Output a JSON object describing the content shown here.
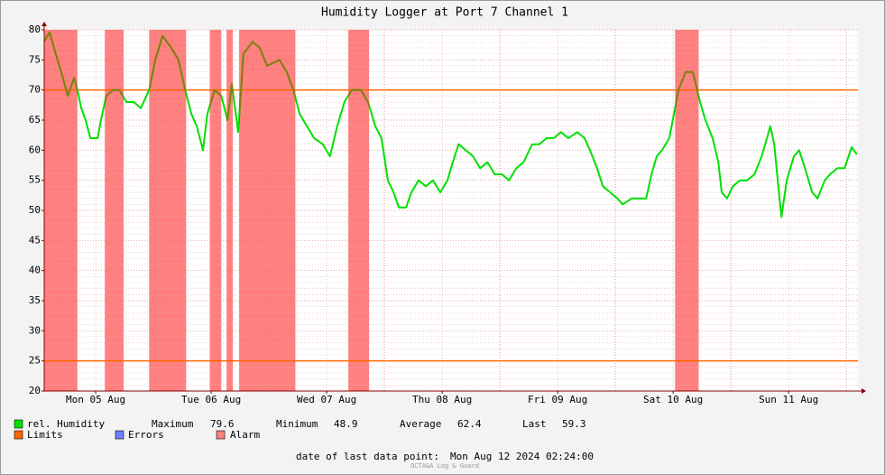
{
  "chart_data": {
    "type": "line",
    "title": "Humidity Logger at Port 7 Channel 1",
    "x": [
      1.3,
      2.4,
      3.7,
      5.2,
      6.2,
      7.5,
      8.2,
      9.0,
      9.9,
      10.9,
      12.4,
      13.1,
      14.2,
      15.6,
      16.9,
      18.4,
      19.9,
      21.4,
      23.1,
      24.4,
      25.9,
      27.7,
      29.2,
      30.6,
      31.9,
      33.0,
      34.3,
      35.2,
      36.7,
      38.1,
      39.4,
      40.3,
      41.6,
      42.7,
      44.6,
      46.1,
      47.6,
      50.2,
      51.7,
      53.1,
      54.4,
      55.9,
      57.4,
      59.2,
      60.7,
      62.2,
      63.7,
      65.2,
      67.1,
      68.6,
      70.1,
      71.4,
      72.7,
      73.9,
      75.0,
      76.5,
      77.6,
      79.1,
      80.6,
      82.1,
      83.6,
      85.1,
      86.2,
      87.4,
      88.9,
      90.4,
      91.9,
      93.4,
      94.9,
      96.4,
      97.9,
      99.4,
      100.9,
      102.7,
      104.2,
      105.7,
      107.2,
      108.7,
      110.2,
      112.1,
      113.6,
      114.7,
      116.2,
      117.4,
      118.9,
      120.4,
      121.5,
      123.4,
      124.9,
      126.4,
      127.5,
      128.6,
      129.7,
      131.2,
      132.4,
      133.1,
      134.6,
      136.1,
      137.6,
      138.7,
      140.2,
      141.4,
      142.1,
      143.2,
      144.4,
      145.9,
      147.4,
      148.9,
      150.4,
      151.5,
      152.2,
      153.0,
      154.1,
      154.5,
      155.6,
      157.1,
      158.2,
      159.4,
      160.9,
      162.0,
      163.5,
      164.6,
      166.1,
      167.6,
      169.1,
      170.2
    ],
    "series": [
      {
        "name": "rel. Humidity",
        "color": "#00e000",
        "alarm_color": "#8a7a10",
        "values": [
          78,
          79.6,
          76,
          72,
          69,
          72,
          70,
          67,
          65,
          62,
          62,
          65,
          69,
          70,
          70,
          68,
          68,
          67,
          70,
          75,
          79,
          77,
          75,
          70,
          66,
          64,
          60,
          66,
          70,
          69,
          65,
          71,
          63,
          76,
          78,
          77,
          74,
          75,
          73,
          70,
          66,
          64,
          62,
          61,
          59,
          64,
          68,
          70,
          70,
          68,
          64,
          62,
          55,
          53,
          50.5,
          50.5,
          53,
          55,
          54,
          55,
          53,
          55,
          58,
          61,
          60,
          59,
          57,
          58,
          56,
          56,
          55,
          57,
          58,
          61,
          61,
          62,
          62,
          63,
          62,
          63,
          62,
          60,
          57,
          54,
          53,
          52,
          51,
          52,
          52,
          52,
          56,
          59,
          60,
          62,
          67,
          70,
          73,
          73,
          68,
          65,
          62,
          58,
          53,
          52,
          54,
          55,
          55,
          56,
          59,
          62,
          64,
          61,
          52,
          48.9,
          55,
          59,
          60,
          57,
          53,
          52,
          55,
          56,
          57,
          57,
          60.5,
          59.3
        ]
      }
    ],
    "xlim": [
      1.3,
      170.4
    ],
    "ylim": [
      20,
      80
    ],
    "yticks": [
      20,
      25,
      30,
      35,
      40,
      45,
      50,
      55,
      60,
      65,
      70,
      75,
      80
    ],
    "xticks": [
      {
        "value": 12,
        "label": "Mon 05 Aug"
      },
      {
        "value": 36,
        "label": "Tue 06 Aug"
      },
      {
        "value": 60,
        "label": "Wed 07 Aug"
      },
      {
        "value": 84,
        "label": "Thu 08 Aug"
      },
      {
        "value": 108,
        "label": "Fri 09 Aug"
      },
      {
        "value": 132,
        "label": "Sat 10 Aug"
      },
      {
        "value": 156,
        "label": "Sun 11 Aug"
      }
    ],
    "grid": true,
    "limits": {
      "name": "Limits",
      "color": "#ff6600",
      "values": [
        70,
        25
      ]
    },
    "errors": {
      "name": "Errors",
      "color": "#7080ff"
    },
    "alarm": {
      "name": "Alarm",
      "color": "#ff7f7f",
      "intervals": [
        [
          1.3,
          8.2
        ],
        [
          13.9,
          17.8
        ],
        [
          23.1,
          30.8
        ],
        [
          35.7,
          38.1
        ],
        [
          39.2,
          40.5
        ],
        [
          41.8,
          53.5
        ],
        [
          64.5,
          68.8
        ],
        [
          132.4,
          137.3
        ]
      ]
    },
    "stats": [
      {
        "label": "Maximum",
        "value": 79.6
      },
      {
        "label": "Minimum",
        "value": 48.9
      },
      {
        "label": "Average",
        "value": 62.4
      },
      {
        "label": "Last",
        "value": 59.3
      }
    ],
    "footer": {
      "label": "date of last data point:",
      "value": "Mon Aug 12 2024 02:24:00"
    },
    "credit": "OCTA&A Log & Guard"
  }
}
